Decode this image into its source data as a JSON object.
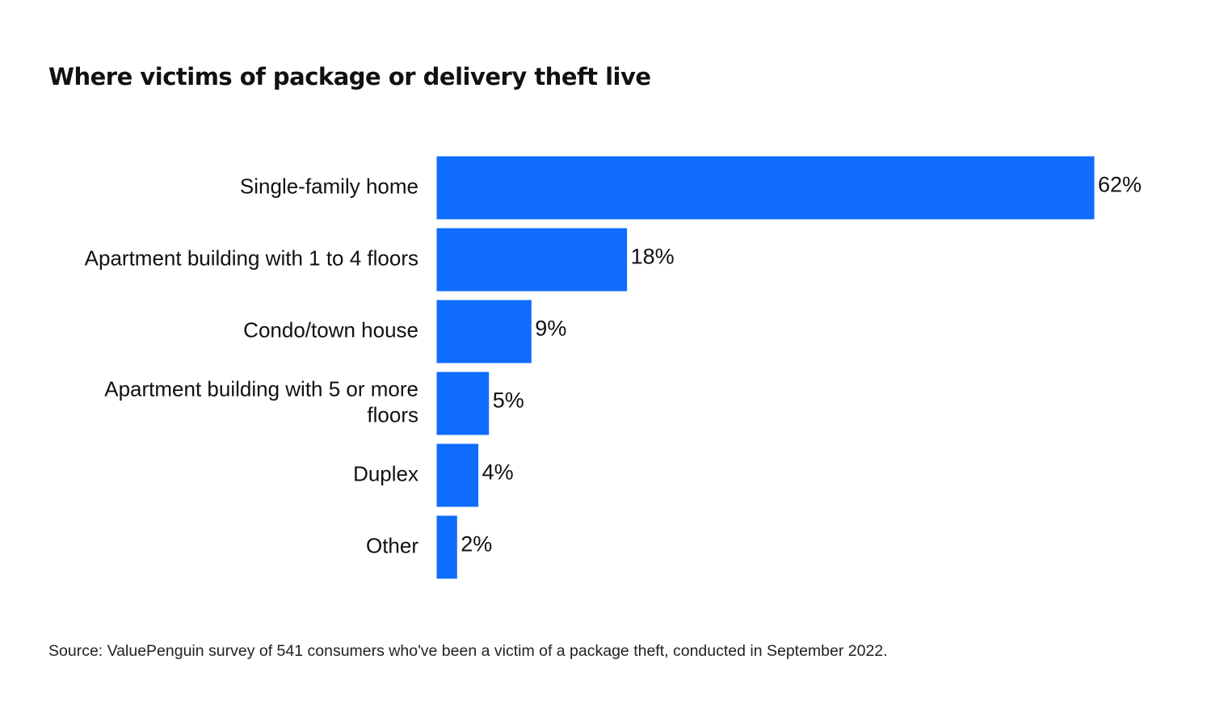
{
  "chart_data": {
    "type": "bar",
    "orientation": "horizontal",
    "title": "Where victims of package or delivery theft live",
    "categories": [
      "Single-family home",
      "Apartment building with 1 to 4 floors",
      "Condo/town house",
      "Apartment building with 5 or more floors",
      "Duplex",
      "Other"
    ],
    "category_lines": [
      [
        "Single-family home"
      ],
      [
        "Apartment building with 1 to 4 floors"
      ],
      [
        "Condo/town house"
      ],
      [
        "Apartment building with 5 or more",
        "floors"
      ],
      [
        "Duplex"
      ],
      [
        "Other"
      ]
    ],
    "values": [
      62,
      18,
      9,
      5,
      4,
      2
    ],
    "value_labels": [
      "62%",
      "18%",
      "9%",
      "5%",
      "4%",
      "2%"
    ],
    "xlim": [
      0,
      62
    ],
    "grid": false,
    "legend": "none",
    "bar_color": "#0f6cfc"
  },
  "source_note": "Source: ValuePenguin survey of 541 consumers who've been a victim of a package theft, conducted in September 2022."
}
